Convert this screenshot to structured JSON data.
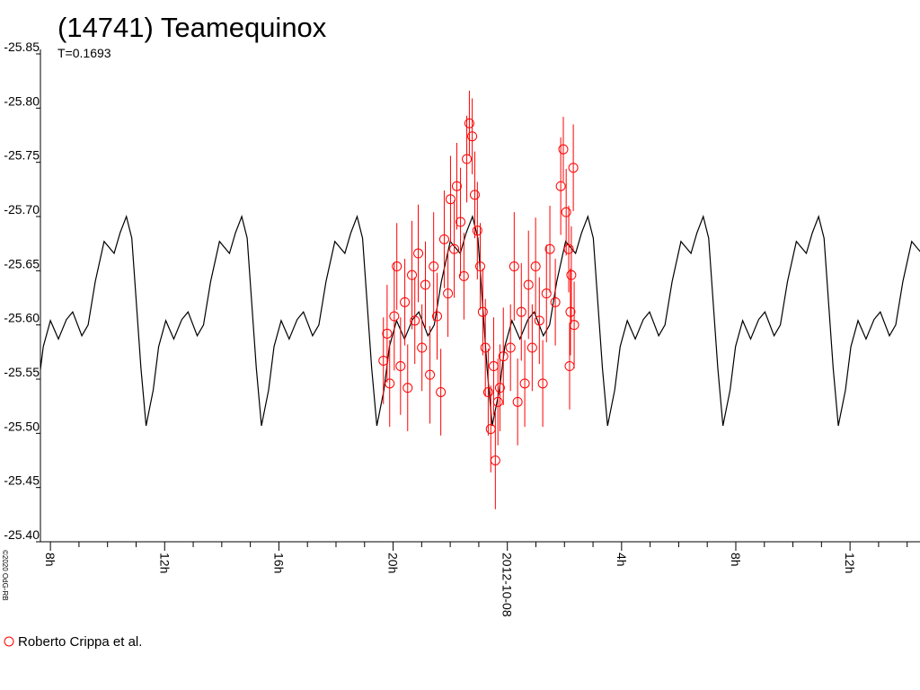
{
  "chart_data": {
    "type": "scatter",
    "title": "(14741) Teamequinox",
    "subtitle": "T=0.1693",
    "copyright": "©2020 OdG-RB",
    "xlim": [
      -16.35,
      14.45
    ],
    "xticks": [
      {
        "value": -16,
        "label": "8h"
      },
      {
        "value": -12,
        "label": "12h"
      },
      {
        "value": -8,
        "label": "16h"
      },
      {
        "value": -4,
        "label": "20h"
      },
      {
        "value": 0,
        "label": "2012-10-08"
      },
      {
        "value": 4,
        "label": "4h"
      },
      {
        "value": 8,
        "label": "8h"
      },
      {
        "value": 12,
        "label": "12h"
      }
    ],
    "xminorticks": [
      -15,
      -14,
      -13,
      -11,
      -10,
      -9,
      -7,
      -6,
      -5,
      -3,
      -2,
      -1,
      1,
      2,
      3,
      5,
      6,
      7,
      9,
      10,
      11,
      13,
      14
    ],
    "ylim": [
      -25.4,
      -25.85
    ],
    "yticks": [
      {
        "value": -25.4,
        "label": "-25.40"
      },
      -25.45,
      {
        "value": -25.5,
        "label": "-25.50"
      },
      -25.55,
      {
        "value": -25.6,
        "label": "-25.60"
      },
      -25.65,
      {
        "value": -25.7,
        "label": "-25.70"
      },
      -25.75,
      {
        "value": -25.8,
        "label": "-25.80"
      },
      -25.85
    ],
    "series": [
      {
        "type": "line",
        "color": "#000000",
        "x": [
          -16.44,
          -16.25,
          -16.0,
          -15.72,
          -15.44,
          -15.22,
          -14.9,
          -14.68,
          -14.43,
          -14.12,
          -13.77,
          -13.56,
          -13.34,
          -13.15,
          -12.99,
          -12.83,
          -12.65,
          -12.4,
          -12.21,
          -11.96,
          -11.68,
          -11.4,
          -11.18,
          -10.86,
          -10.64,
          -10.39,
          -10.08,
          -9.73,
          -9.52,
          -9.3,
          -9.11,
          -8.95,
          -8.79,
          -8.61,
          -8.36,
          -8.17,
          -7.92,
          -7.64,
          -7.36,
          -7.14,
          -6.82,
          -6.6,
          -6.35,
          -6.04,
          -5.69,
          -5.48,
          -5.26,
          -5.07,
          -4.91,
          -4.75,
          -4.57,
          -4.32,
          -4.13,
          -3.88,
          -3.6,
          -3.32,
          -3.1,
          -2.78,
          -2.56,
          -2.31,
          -2.0,
          -1.65,
          -1.44,
          -1.22,
          -1.03,
          -0.87,
          -0.71,
          -0.53,
          -0.28,
          -0.09,
          0.16,
          0.44,
          0.72,
          0.94,
          1.26,
          1.48,
          1.73,
          2.04,
          2.39,
          2.6,
          2.82,
          3.01,
          3.17,
          3.33,
          3.51,
          3.76,
          3.95,
          4.2,
          4.48,
          4.76,
          4.98,
          5.3,
          5.52,
          5.77,
          6.08,
          6.43,
          6.64,
          6.86,
          7.05,
          7.21,
          7.37,
          7.55,
          7.8,
          7.99,
          8.24,
          8.52,
          8.8,
          9.02,
          9.34,
          9.56,
          9.81,
          10.12,
          10.47,
          10.68,
          10.9,
          11.09,
          11.25,
          11.41,
          11.59,
          11.84,
          12.03,
          12.28,
          12.56,
          12.84,
          13.06,
          13.38,
          13.6,
          13.85,
          14.16,
          14.51
        ],
        "values": [
          -25.54,
          -25.58,
          -25.604,
          -25.587,
          -25.605,
          -25.612,
          -25.59,
          -25.6,
          -25.64,
          -25.677,
          -25.666,
          -25.685,
          -25.7,
          -25.68,
          -25.62,
          -25.56,
          -25.507,
          -25.54,
          -25.58,
          -25.604,
          -25.587,
          -25.605,
          -25.612,
          -25.59,
          -25.6,
          -25.64,
          -25.677,
          -25.666,
          -25.685,
          -25.7,
          -25.68,
          -25.62,
          -25.56,
          -25.507,
          -25.54,
          -25.58,
          -25.604,
          -25.587,
          -25.605,
          -25.612,
          -25.59,
          -25.6,
          -25.64,
          -25.677,
          -25.666,
          -25.685,
          -25.7,
          -25.68,
          -25.62,
          -25.56,
          -25.507,
          -25.54,
          -25.58,
          -25.604,
          -25.587,
          -25.605,
          -25.612,
          -25.59,
          -25.6,
          -25.64,
          -25.677,
          -25.666,
          -25.685,
          -25.7,
          -25.68,
          -25.62,
          -25.56,
          -25.507,
          -25.54,
          -25.58,
          -25.604,
          -25.587,
          -25.605,
          -25.612,
          -25.59,
          -25.6,
          -25.64,
          -25.677,
          -25.666,
          -25.685,
          -25.7,
          -25.68,
          -25.62,
          -25.56,
          -25.507,
          -25.54,
          -25.58,
          -25.604,
          -25.587,
          -25.605,
          -25.612,
          -25.59,
          -25.6,
          -25.64,
          -25.677,
          -25.666,
          -25.685,
          -25.7,
          -25.68,
          -25.62,
          -25.56,
          -25.507,
          -25.54,
          -25.58,
          -25.604,
          -25.587,
          -25.605,
          -25.612,
          -25.59,
          -25.6,
          -25.64,
          -25.677,
          -25.666,
          -25.685,
          -25.7,
          -25.68,
          -25.62,
          -25.56,
          -25.507,
          -25.54,
          -25.58,
          -25.604,
          -25.587,
          -25.605,
          -25.612,
          -25.59,
          -25.6,
          -25.64,
          -25.677,
          -25.666
        ]
      },
      {
        "type": "scatter",
        "name": "Roberto Crippa et al.",
        "color": "#ff0000",
        "x": [
          -4.34,
          -4.21,
          -4.12,
          -3.96,
          -3.87,
          -3.74,
          -3.59,
          -3.49,
          -3.34,
          -3.24,
          -3.12,
          -2.99,
          -2.87,
          -2.71,
          -2.58,
          -2.46,
          -2.33,
          -2.21,
          -2.08,
          -1.99,
          -1.86,
          -1.77,
          -1.64,
          -1.52,
          -1.42,
          -1.33,
          -1.23,
          -1.14,
          -1.05,
          -0.95,
          -0.86,
          -0.77,
          -0.67,
          -0.58,
          -0.48,
          -0.42,
          -0.33,
          -0.26,
          -0.14,
          0.11,
          0.24,
          0.36,
          0.49,
          0.61,
          0.74,
          0.87,
          0.99,
          1.12,
          1.24,
          1.37,
          1.49,
          1.68,
          1.87,
          1.96,
          2.06,
          2.15,
          2.24,
          2.31,
          2.34,
          2.18,
          2.21
        ],
        "values": [
          -25.567,
          -25.592,
          -25.546,
          -25.608,
          -25.654,
          -25.562,
          -25.621,
          -25.542,
          -25.646,
          -25.604,
          -25.666,
          -25.579,
          -25.637,
          -25.554,
          -25.654,
          -25.608,
          -25.538,
          -25.679,
          -25.629,
          -25.716,
          -25.67,
          -25.728,
          -25.695,
          -25.645,
          -25.753,
          -25.786,
          -25.774,
          -25.72,
          -25.687,
          -25.654,
          -25.612,
          -25.579,
          -25.538,
          -25.504,
          -25.562,
          -25.475,
          -25.529,
          -25.542,
          -25.571,
          -25.579,
          -25.654,
          -25.529,
          -25.612,
          -25.546,
          -25.637,
          -25.579,
          -25.654,
          -25.604,
          -25.546,
          -25.629,
          -25.67,
          -25.621,
          -25.728,
          -25.762,
          -25.704,
          -25.67,
          -25.646,
          -25.745,
          -25.6,
          -25.562,
          -25.612
        ],
        "errors": [
          0.04,
          0.045,
          0.04,
          0.05,
          0.04,
          0.045,
          0.04,
          0.04,
          0.05,
          0.04,
          0.045,
          0.04,
          0.04,
          0.045,
          0.05,
          0.04,
          0.04,
          0.045,
          0.04,
          0.04,
          0.045,
          0.04,
          0.05,
          0.04,
          0.04,
          0.03,
          0.035,
          0.04,
          0.045,
          0.04,
          0.04,
          0.045,
          0.04,
          0.04,
          0.045,
          0.045,
          0.04,
          0.04,
          0.045,
          0.04,
          0.05,
          0.04,
          0.045,
          0.04,
          0.05,
          0.04,
          0.045,
          0.04,
          0.04,
          0.045,
          0.04,
          0.04,
          0.045,
          0.03,
          0.04,
          0.04,
          0.045,
          0.04,
          0.04,
          0.04,
          0.04
        ]
      }
    ]
  }
}
